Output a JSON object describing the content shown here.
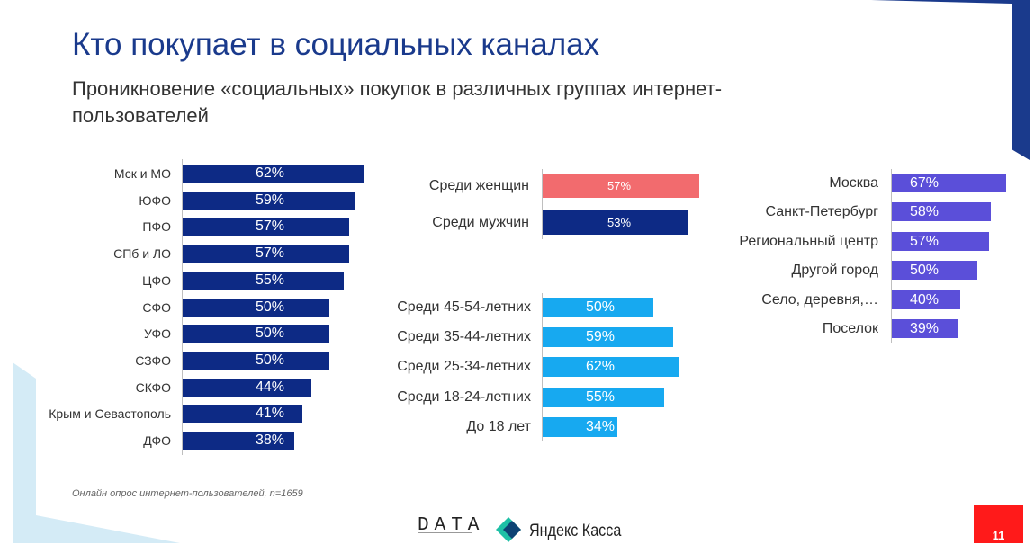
{
  "header": {
    "title": "Кто покупает в социальных каналах",
    "subtitle": "Проникновение «социальных» покупок в различных группах интернет-пользователей"
  },
  "footnote": "Онлайн опрос интернет-пользователей, n=1659",
  "logos": {
    "data": "DATA",
    "yandex_kassa": "Яндекс Касса"
  },
  "page_number": "11",
  "colors": {
    "accent": "#1a3a8c",
    "regions_bar": "#0d2a85",
    "female_bar": "#f26b6e",
    "male_bar": "#0d2a85",
    "age_bar": "#17a9f0",
    "city_bar": "#5b4fd9",
    "page_badge": "#ff1a1a",
    "deco_light": "#d4ebf6"
  },
  "chart_data": [
    {
      "type": "bar",
      "orientation": "horizontal",
      "categories": [
        "Мск и МО",
        "ЮФО",
        "ПФО",
        "СПб и ЛО",
        "ЦФО",
        "СФО",
        "УФО",
        "СЗФО",
        "СКФО",
        "Крым и Севастополь",
        "ДФО"
      ],
      "values": [
        62,
        59,
        57,
        57,
        55,
        50,
        50,
        50,
        44,
        41,
        38
      ],
      "labels": [
        "62%",
        "59%",
        "57%",
        "57%",
        "55%",
        "50%",
        "50%",
        "50%",
        "44%",
        "41%",
        "38%"
      ],
      "unit": "%",
      "color": "#0d2a85"
    },
    {
      "type": "bar",
      "orientation": "horizontal",
      "categories": [
        "Среди женщин",
        "Среди мужчин"
      ],
      "values": [
        57,
        53
      ],
      "labels": [
        "57%",
        "53%"
      ],
      "unit": "%",
      "colors": [
        "#f26b6e",
        "#0d2a85"
      ]
    },
    {
      "type": "bar",
      "orientation": "horizontal",
      "categories": [
        "Среди 45-54-летних",
        "Среди 35-44-летних",
        "Среди 25-34-летних",
        "Среди 18-24-летних",
        "До 18 лет"
      ],
      "values": [
        50,
        59,
        62,
        55,
        34
      ],
      "labels": [
        "50%",
        "59%",
        "62%",
        "55%",
        "34%"
      ],
      "unit": "%",
      "color": "#17a9f0"
    },
    {
      "type": "bar",
      "orientation": "horizontal",
      "categories": [
        "Москва",
        "Санкт-Петербург",
        "Региональный центр",
        "Другой город",
        "Село, деревня,…",
        "Поселок"
      ],
      "values": [
        67,
        58,
        57,
        50,
        40,
        39
      ],
      "labels": [
        "67%",
        "58%",
        "57%",
        "50%",
        "40%",
        "39%"
      ],
      "unit": "%",
      "color": "#5b4fd9"
    }
  ]
}
